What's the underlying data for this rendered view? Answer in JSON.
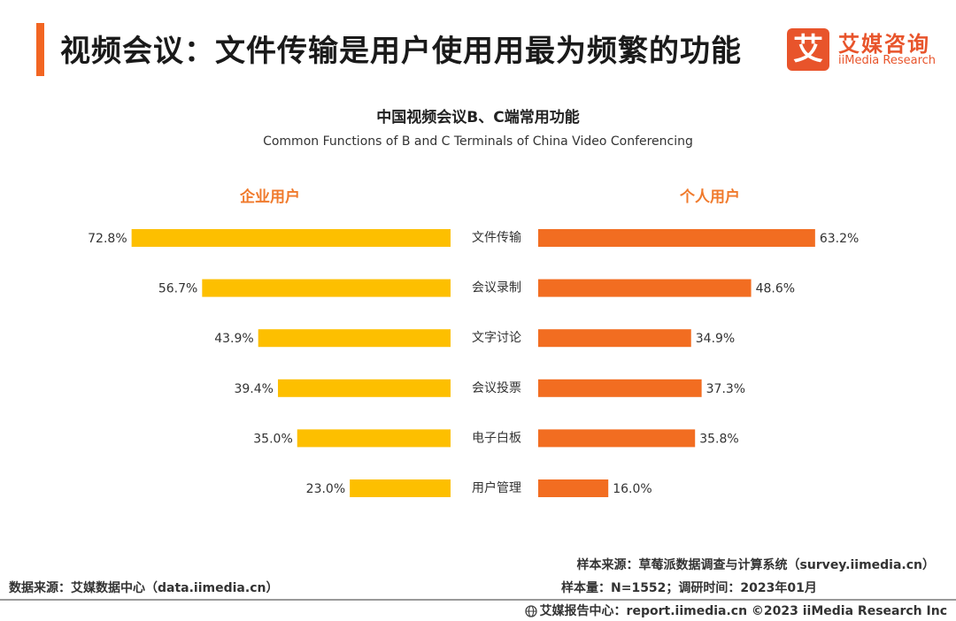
{
  "header": {
    "title": "视频会议：文件传输是用户使用用最为频繁的功能",
    "logo_mark": "艾",
    "logo_cn": "艾媒咨询",
    "logo_en": "iiMedia Research"
  },
  "colors": {
    "accent": "#f26522",
    "enterprise_bar": "#fdbf00",
    "personal_bar": "#f26d21",
    "group_label": "#f07a2c"
  },
  "chart_data": {
    "type": "bar",
    "title": "中国视频会议B、C端常用功能",
    "subtitle": "Common Functions of B and C Terminals of China Video Conferencing",
    "categories": [
      "文件传输",
      "会议录制",
      "文字讨论",
      "会议投票",
      "电子白板",
      "用户管理"
    ],
    "series": [
      {
        "name": "企业用户",
        "values": [
          72.8,
          56.7,
          43.9,
          39.4,
          35.0,
          23.0
        ]
      },
      {
        "name": "个人用户",
        "values": [
          63.2,
          48.6,
          34.9,
          37.3,
          35.8,
          16.0
        ]
      }
    ],
    "unit": "%"
  },
  "footer": {
    "source_left": "数据来源：艾媒数据中心（data.iimedia.cn）",
    "sample_source": "样本来源：草莓派数据调查与计算系统（survey.iimedia.cn）",
    "sample_info": "样本量：N=1552；调研时间：2023年01月",
    "bottom": "艾媒报告中心：report.iimedia.cn  ©2023  iiMedia Research  Inc"
  }
}
